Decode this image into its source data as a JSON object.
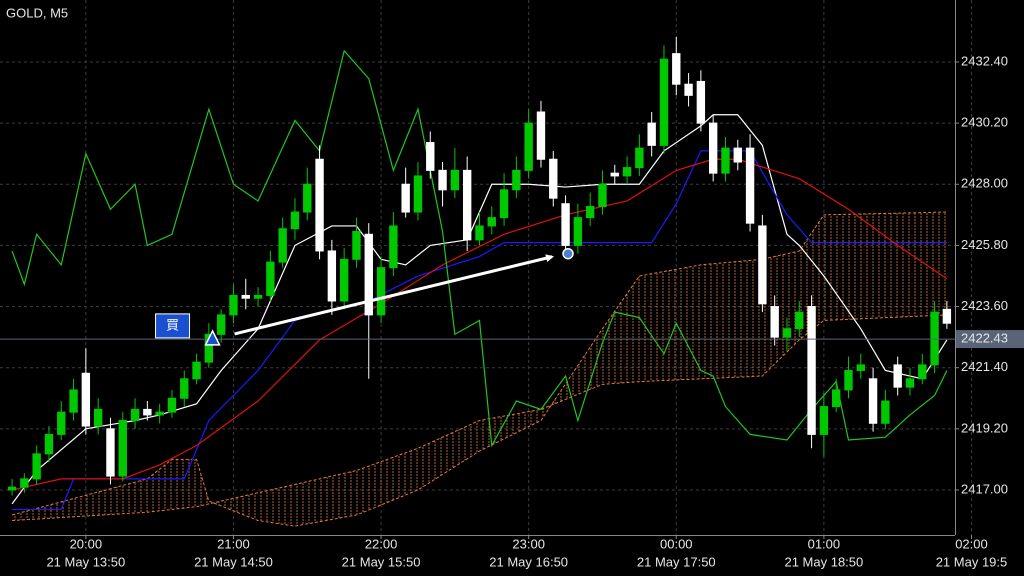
{
  "chart_data": {
    "type": "candlestick",
    "title": "GOLD, M5",
    "xlim": [
      -0.98,
      76.66
    ],
    "ylim": [
      2415.38,
      2434.63
    ],
    "grid": true,
    "bull_color": "#00c800",
    "bear_color": "#ffffff",
    "yticks": [
      {
        "value": 2432.4,
        "label": "2432.40"
      },
      {
        "value": 2430.2,
        "label": "2430.20"
      },
      {
        "value": 2428.0,
        "label": "2428.00"
      },
      {
        "value": 2425.8,
        "label": "2425.80"
      },
      {
        "value": 2423.6,
        "label": "2423.60"
      },
      {
        "value": 2421.4,
        "label": "2421.40"
      },
      {
        "value": 2419.2,
        "label": "2419.20"
      },
      {
        "value": 2417.0,
        "label": "2417.00"
      }
    ],
    "xticks": [
      {
        "value": 6,
        "label": "20:00"
      },
      {
        "value": 18,
        "label": "21:00"
      },
      {
        "value": 30,
        "label": "22:00"
      },
      {
        "value": 42,
        "label": "23:00"
      },
      {
        "value": 54,
        "label": "00:00"
      },
      {
        "value": 66,
        "label": "01:00"
      },
      {
        "value": 78,
        "label": "02:00"
      }
    ],
    "xticks2": [
      {
        "value": 6,
        "label": "21 May 13:50"
      },
      {
        "value": 18,
        "label": "21 May 14:50"
      },
      {
        "value": 30,
        "label": "21 May 15:50"
      },
      {
        "value": 42,
        "label": "21 May 16:50"
      },
      {
        "value": 54,
        "label": "21 May 17:50"
      },
      {
        "value": 66,
        "label": "21 May 18:50"
      },
      {
        "value": 78,
        "label": "21 May 19:5"
      }
    ],
    "open": [
      2417.0,
      2417.1,
      2417.4,
      2418.3,
      2419.0,
      2419.8,
      2421.2,
      2419.3,
      2419.2,
      2417.5,
      2419.5,
      2419.9,
      2419.7,
      2419.8,
      2420.3,
      2421.0,
      2421.6,
      2422.6,
      2423.3,
      2424.0,
      2423.9,
      2424.0,
      2425.2,
      2426.4,
      2427.0,
      2428.9,
      2425.6,
      2423.8,
      2425.3,
      2426.2,
      2423.3,
      2425.0,
      2428.0,
      2427.0,
      2429.5,
      2428.5,
      2427.8,
      2428.5,
      2426.0,
      2426.5,
      2426.8,
      2427.8,
      2428.5,
      2430.6,
      2428.9,
      2427.3,
      2425.8,
      2426.8,
      2427.2,
      2428.4,
      2428.3,
      2428.6,
      2430.2,
      2429.4,
      2432.7,
      2431.6,
      2431.7,
      2430.2,
      2428.4,
      2429.3,
      2429.3,
      2426.5,
      2423.6,
      2422.5,
      2422.8,
      2423.6,
      2419.0,
      2420.0,
      2420.6,
      2421.3,
      2421.0,
      2419.4,
      2421.5,
      2420.7,
      2421.0,
      2421.5,
      2423.5
    ],
    "high": [
      2417.4,
      2417.6,
      2418.6,
      2419.3,
      2420.2,
      2421.0,
      2422.1,
      2420.3,
      2419.6,
      2419.8,
      2420.3,
      2420.2,
      2420.1,
      2420.6,
      2421.3,
      2421.9,
      2423.0,
      2423.5,
      2424.4,
      2424.6,
      2424.3,
      2425.6,
      2426.8,
      2427.5,
      2428.6,
      2429.4,
      2426.0,
      2425.7,
      2426.8,
      2426.6,
      2425.4,
      2427.0,
      2428.6,
      2428.8,
      2429.9,
      2428.8,
      2429.3,
      2429.0,
      2427.0,
      2427.2,
      2428.4,
      2429.0,
      2430.7,
      2431.0,
      2429.2,
      2427.6,
      2427.3,
      2427.7,
      2428.5,
      2428.7,
      2429.0,
      2429.8,
      2430.6,
      2433.0,
      2433.3,
      2432.0,
      2432.1,
      2430.5,
      2429.7,
      2429.6,
      2429.8,
      2426.9,
      2424.0,
      2423.2,
      2423.8,
      2424.0,
      2420.5,
      2421.0,
      2421.8,
      2421.9,
      2421.4,
      2420.6,
      2421.8,
      2421.4,
      2421.9,
      2423.8,
      2423.8
    ],
    "low": [
      2416.8,
      2416.9,
      2417.2,
      2418.0,
      2418.8,
      2419.5,
      2419.0,
      2419.0,
      2417.2,
      2417.3,
      2419.2,
      2419.5,
      2419.4,
      2419.6,
      2420.0,
      2420.8,
      2421.4,
      2422.3,
      2423.0,
      2423.5,
      2423.6,
      2423.8,
      2425.0,
      2426.0,
      2426.7,
      2425.3,
      2423.3,
      2423.5,
      2425.0,
      2421.0,
      2423.0,
      2424.7,
      2426.8,
      2426.7,
      2428.2,
      2427.2,
      2427.5,
      2425.6,
      2425.8,
      2426.2,
      2426.5,
      2427.5,
      2428.2,
      2428.6,
      2427.2,
      2425.6,
      2425.5,
      2426.5,
      2426.9,
      2428.0,
      2428.0,
      2428.3,
      2429.0,
      2429.1,
      2431.2,
      2430.8,
      2429.9,
      2428.1,
      2428.1,
      2428.5,
      2426.3,
      2423.4,
      2422.2,
      2422.0,
      2422.5,
      2418.5,
      2418.2,
      2419.8,
      2420.3,
      2421.0,
      2419.1,
      2419.2,
      2420.4,
      2420.4,
      2420.8,
      2421.2,
      2422.8
    ],
    "close": [
      2417.1,
      2417.4,
      2418.3,
      2419.0,
      2419.8,
      2420.6,
      2419.3,
      2419.9,
      2417.5,
      2419.5,
      2419.9,
      2419.7,
      2419.8,
      2420.3,
      2421.0,
      2421.6,
      2422.6,
      2423.3,
      2424.0,
      2423.9,
      2424.0,
      2425.2,
      2426.4,
      2427.0,
      2428.0,
      2425.6,
      2423.8,
      2425.3,
      2426.3,
      2423.3,
      2425.0,
      2426.5,
      2427.0,
      2428.3,
      2428.5,
      2427.8,
      2428.5,
      2426.0,
      2426.5,
      2426.8,
      2427.8,
      2428.5,
      2430.2,
      2428.9,
      2427.5,
      2425.8,
      2426.8,
      2427.2,
      2428.0,
      2428.3,
      2428.6,
      2429.3,
      2429.4,
      2432.5,
      2431.6,
      2431.2,
      2430.2,
      2428.4,
      2429.3,
      2428.8,
      2426.6,
      2423.7,
      2422.5,
      2422.8,
      2423.4,
      2419.0,
      2420.0,
      2420.6,
      2421.3,
      2421.5,
      2419.4,
      2420.2,
      2420.7,
      2421.0,
      2421.5,
      2423.4,
      2423.0
    ],
    "lines": [
      {
        "color": "#ffffff",
        "x": [
          0,
          2,
          6,
          10,
          12,
          15,
          17,
          20,
          23,
          26,
          28,
          30,
          32,
          34,
          37,
          39,
          42,
          45,
          48,
          51,
          53,
          56,
          57,
          59,
          61,
          63,
          64,
          66,
          69,
          71,
          74,
          76
        ],
        "values": [
          2416.5,
          2417.7,
          2419.2,
          2419.5,
          2419.7,
          2420.1,
          2421.3,
          2422.8,
          2425.8,
          2426.5,
          2426.5,
          2425.3,
          2425.1,
          2425.8,
          2426.0,
          2428.0,
          2428.0,
          2427.9,
          2428.0,
          2428.0,
          2429.2,
          2430.1,
          2430.5,
          2430.5,
          2429.4,
          2426.2,
          2425.8,
          2424.7,
          2422.8,
          2421.3,
          2421.0,
          2422.4
        ]
      },
      {
        "color": "#1a1aff",
        "x": [
          0,
          4,
          5,
          14,
          16,
          20,
          23,
          29,
          33,
          38,
          40,
          52,
          54,
          56,
          60,
          63,
          65,
          76
        ],
        "values": [
          2416.3,
          2416.3,
          2417.4,
          2417.4,
          2419.5,
          2421.3,
          2423.1,
          2423.8,
          2424.7,
          2425.4,
          2425.9,
          2425.9,
          2427.3,
          2429.2,
          2429.2,
          2426.9,
          2425.9,
          2425.9
        ]
      },
      {
        "color": "#e01010",
        "x": [
          0,
          4,
          9,
          12,
          15,
          20,
          25,
          30,
          35,
          40,
          45,
          50,
          54,
          57,
          59,
          64,
          68,
          72,
          76
        ],
        "values": [
          2417.0,
          2417.4,
          2417.4,
          2417.9,
          2418.6,
          2420.2,
          2422.4,
          2423.7,
          2425.1,
          2426.2,
          2426.9,
          2427.4,
          2428.5,
          2428.9,
          2428.9,
          2428.2,
          2427.1,
          2425.8,
          2424.6
        ]
      },
      {
        "color": "#22c422",
        "x": [
          0,
          1,
          2,
          4,
          6,
          8,
          10,
          11,
          13,
          16,
          18,
          20,
          23,
          25,
          27,
          29,
          31,
          33,
          35,
          36,
          38,
          39,
          41,
          43,
          45,
          46,
          48,
          49,
          51,
          53,
          54,
          56,
          57,
          58,
          60,
          63,
          65,
          67,
          68,
          71,
          73,
          75,
          76
        ],
        "values": [
          2425.6,
          2424.4,
          2426.2,
          2425.1,
          2429.1,
          2427.1,
          2428.0,
          2425.8,
          2426.2,
          2430.7,
          2428.0,
          2427.4,
          2430.3,
          2429.2,
          2432.8,
          2431.8,
          2428.5,
          2430.7,
          2426.3,
          2422.6,
          2423.1,
          2418.6,
          2420.2,
          2419.9,
          2421.1,
          2419.5,
          2422.3,
          2423.4,
          2423.2,
          2421.9,
          2423.0,
          2421.3,
          2421.1,
          2420.0,
          2419.0,
          2418.8,
          2419.9,
          2420.9,
          2418.8,
          2418.9,
          2419.7,
          2420.4,
          2421.3
        ]
      }
    ],
    "cloud": {
      "color": "#e07b39",
      "x": [
        0,
        11,
        13,
        15,
        16,
        20,
        23,
        28,
        33,
        38,
        43,
        48,
        51,
        56,
        61,
        64,
        66,
        76
      ],
      "span_a": [
        2416.1,
        2417.4,
        2418.1,
        2418.1,
        2416.6,
        2415.9,
        2415.7,
        2416.1,
        2417.0,
        2418.4,
        2419.5,
        2422.8,
        2424.7,
        2425.1,
        2425.3,
        2425.6,
        2426.9,
        2427.0
      ],
      "span_b": [
        2415.9,
        2416.2,
        2416.3,
        2416.4,
        2416.5,
        2416.9,
        2417.2,
        2417.7,
        2418.5,
        2419.5,
        2419.9,
        2420.8,
        2420.9,
        2421.0,
        2421.1,
        2422.4,
        2423.1,
        2423.3
      ]
    },
    "last_price": 2422.43,
    "last_price_color": "#5a6478",
    "trades": [
      {
        "label": "買",
        "color": "#1a4fd0",
        "entry_x": 16.3,
        "entry_price": 2422.4,
        "exit_x": 45.2,
        "exit_price": 2425.5
      }
    ]
  }
}
